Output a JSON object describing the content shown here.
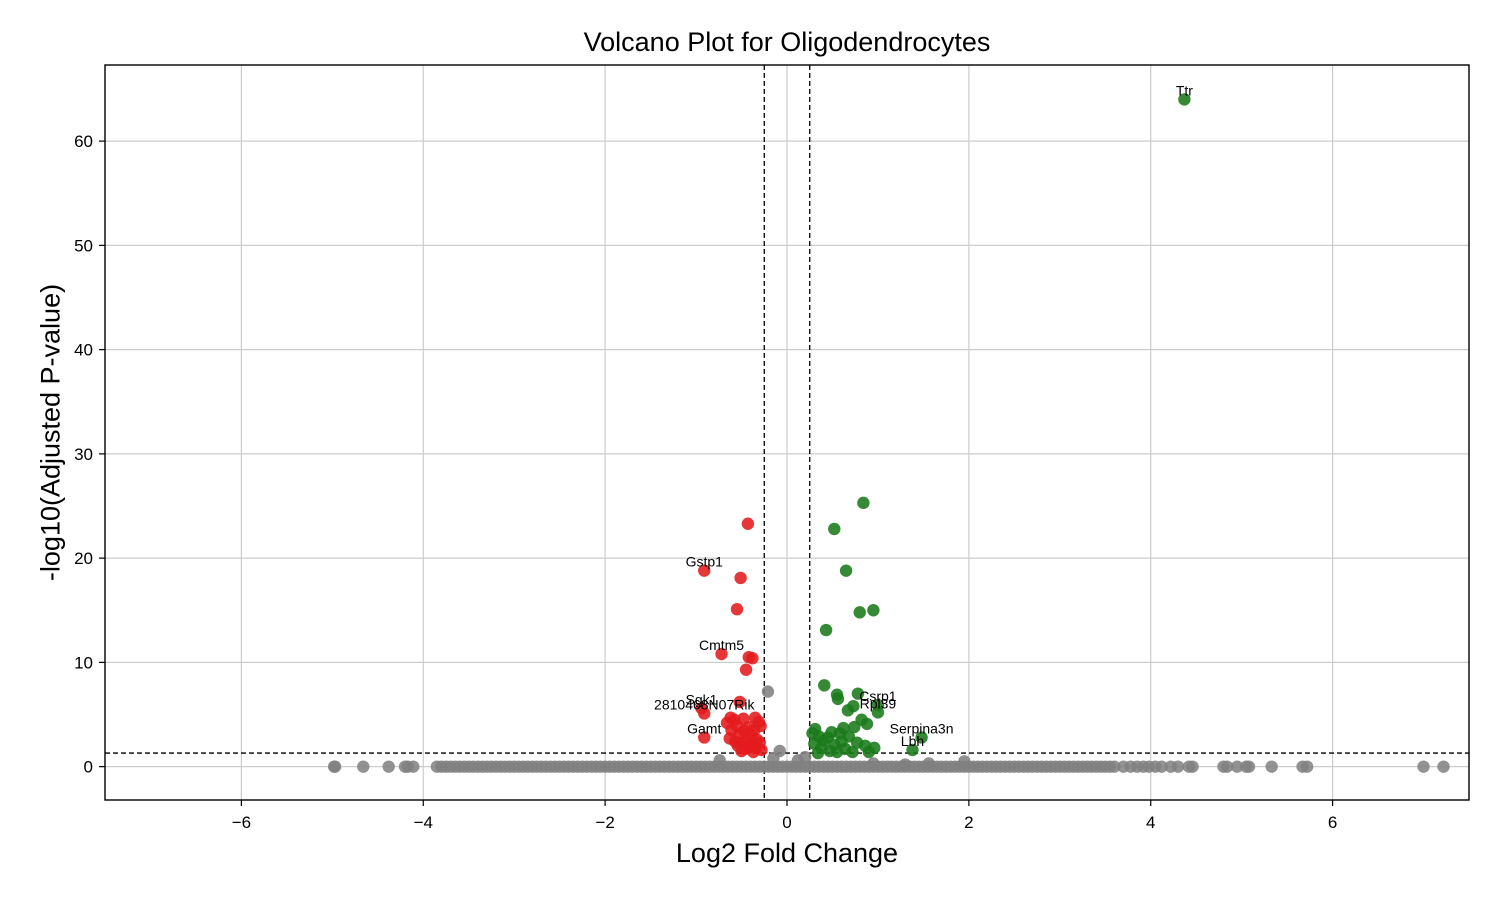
{
  "chart_data": {
    "type": "scatter",
    "title": "Volcano Plot for Oligodendrocytes",
    "xlabel": "Log2 Fold Change",
    "ylabel": "-log10(Adjusted P-value)",
    "xlim": [
      -7.5,
      7.5
    ],
    "ylim": [
      -3.2,
      67.3
    ],
    "xticks": [
      -6,
      -4,
      -2,
      0,
      2,
      4,
      6
    ],
    "yticks": [
      0,
      10,
      20,
      30,
      40,
      50,
      60
    ],
    "grid": true,
    "thresholds": {
      "log2fc": [
        -0.25,
        0.25
      ],
      "neg_log10_p": 1.3
    },
    "colors": {
      "down": "#e41a1c",
      "up": "#1a7a1a",
      "ns": "#808080",
      "grid": "#cccccc",
      "threshold": "#000000"
    },
    "series": [
      {
        "category": "down",
        "points": [
          {
            "x": -0.43,
            "y": 23.3
          },
          {
            "x": -0.91,
            "y": 18.8
          },
          {
            "x": -0.51,
            "y": 18.1
          },
          {
            "x": -0.55,
            "y": 15.1
          },
          {
            "x": -0.72,
            "y": 10.8
          },
          {
            "x": -0.42,
            "y": 10.5
          },
          {
            "x": -0.38,
            "y": 10.4
          },
          {
            "x": -0.45,
            "y": 9.3
          },
          {
            "x": -0.52,
            "y": 6.2
          },
          {
            "x": -0.94,
            "y": 5.6
          },
          {
            "x": -0.91,
            "y": 5.1
          },
          {
            "x": -0.62,
            "y": 4.7
          },
          {
            "x": -0.58,
            "y": 4.5
          },
          {
            "x": -0.48,
            "y": 4.6
          },
          {
            "x": -0.35,
            "y": 4.7
          },
          {
            "x": -0.66,
            "y": 4.2
          },
          {
            "x": -0.31,
            "y": 4.3
          },
          {
            "x": -0.55,
            "y": 3.9
          },
          {
            "x": -0.42,
            "y": 3.8
          },
          {
            "x": -0.29,
            "y": 3.9
          },
          {
            "x": -0.61,
            "y": 3.5
          },
          {
            "x": -0.47,
            "y": 3.4
          },
          {
            "x": -0.36,
            "y": 3.5
          },
          {
            "x": -0.52,
            "y": 3.1
          },
          {
            "x": -0.39,
            "y": 3.0
          },
          {
            "x": -0.91,
            "y": 2.8
          },
          {
            "x": -0.63,
            "y": 2.7
          },
          {
            "x": -0.44,
            "y": 2.6
          },
          {
            "x": -0.33,
            "y": 2.6
          },
          {
            "x": -0.57,
            "y": 2.4
          },
          {
            "x": -0.49,
            "y": 2.3
          },
          {
            "x": -0.38,
            "y": 2.2
          },
          {
            "x": -0.3,
            "y": 2.3
          },
          {
            "x": -0.54,
            "y": 2.0
          },
          {
            "x": -0.41,
            "y": 1.9
          },
          {
            "x": -0.46,
            "y": 1.7
          },
          {
            "x": -0.34,
            "y": 1.8
          },
          {
            "x": -0.28,
            "y": 1.6
          },
          {
            "x": -0.5,
            "y": 1.5
          },
          {
            "x": -0.37,
            "y": 1.4
          }
        ]
      },
      {
        "category": "up",
        "points": [
          {
            "x": 4.37,
            "y": 64.0
          },
          {
            "x": 0.84,
            "y": 25.3
          },
          {
            "x": 0.52,
            "y": 22.8
          },
          {
            "x": 0.65,
            "y": 18.8
          },
          {
            "x": 0.95,
            "y": 15.0
          },
          {
            "x": 0.8,
            "y": 14.8
          },
          {
            "x": 0.43,
            "y": 13.1
          },
          {
            "x": 0.41,
            "y": 7.8
          },
          {
            "x": 0.55,
            "y": 6.9
          },
          {
            "x": 0.78,
            "y": 7.0
          },
          {
            "x": 0.56,
            "y": 6.5
          },
          {
            "x": 1.0,
            "y": 5.9
          },
          {
            "x": 0.73,
            "y": 5.8
          },
          {
            "x": 0.67,
            "y": 5.4
          },
          {
            "x": 1.0,
            "y": 5.2
          },
          {
            "x": 0.82,
            "y": 4.5
          },
          {
            "x": 0.88,
            "y": 4.1
          },
          {
            "x": 0.62,
            "y": 3.7
          },
          {
            "x": 0.31,
            "y": 3.6
          },
          {
            "x": 0.74,
            "y": 3.8
          },
          {
            "x": 0.28,
            "y": 3.2
          },
          {
            "x": 0.49,
            "y": 3.3
          },
          {
            "x": 0.58,
            "y": 3.2
          },
          {
            "x": 0.35,
            "y": 2.9
          },
          {
            "x": 0.45,
            "y": 2.8
          },
          {
            "x": 0.68,
            "y": 2.9
          },
          {
            "x": 1.48,
            "y": 2.8
          },
          {
            "x": 0.4,
            "y": 2.5
          },
          {
            "x": 0.6,
            "y": 2.4
          },
          {
            "x": 0.77,
            "y": 2.3
          },
          {
            "x": 0.3,
            "y": 2.2
          },
          {
            "x": 0.52,
            "y": 2.1
          },
          {
            "x": 0.86,
            "y": 2.0
          },
          {
            "x": 0.38,
            "y": 1.8
          },
          {
            "x": 0.64,
            "y": 1.7
          },
          {
            "x": 0.96,
            "y": 1.8
          },
          {
            "x": 1.38,
            "y": 1.6
          },
          {
            "x": 0.47,
            "y": 1.5
          },
          {
            "x": 0.72,
            "y": 1.4
          },
          {
            "x": 0.9,
            "y": 1.4
          },
          {
            "x": 0.34,
            "y": 1.3
          },
          {
            "x": 0.55,
            "y": 1.4
          }
        ]
      },
      {
        "category": "ns",
        "points": [
          {
            "x": -0.21,
            "y": 7.2
          },
          {
            "x": -0.08,
            "y": 1.5
          },
          {
            "x": 0.12,
            "y": 0.6
          },
          {
            "x": 0.2,
            "y": 0.9
          },
          {
            "x": -0.15,
            "y": 0.8
          },
          {
            "x": 1.95,
            "y": 0.5
          },
          {
            "x": 1.56,
            "y": 0.3
          },
          {
            "x": -0.74,
            "y": 0.6
          },
          {
            "x": 1.3,
            "y": 0.2
          },
          {
            "x": 0.95,
            "y": 0.3
          }
        ]
      }
    ],
    "ns_baseline_x": [
      -4.98,
      -4.97,
      -4.66,
      -4.38,
      -4.2,
      -4.17,
      -4.11,
      -3.85,
      -3.8,
      -3.75,
      -3.7,
      -3.65,
      -3.6,
      -3.55,
      -3.5,
      -3.45,
      -3.4,
      -3.35,
      -3.3,
      -3.25,
      -3.2,
      -3.15,
      -3.1,
      -3.05,
      -3.0,
      -2.95,
      -2.9,
      -2.85,
      -2.8,
      -2.75,
      -2.7,
      -2.65,
      -2.6,
      -2.55,
      -2.5,
      -2.45,
      -2.4,
      -2.35,
      -2.3,
      -2.25,
      -2.2,
      -2.15,
      -2.1,
      -2.05,
      -2.0,
      -1.95,
      -1.9,
      -1.85,
      -1.8,
      -1.75,
      -1.7,
      -1.65,
      -1.6,
      -1.55,
      -1.5,
      -1.45,
      -1.4,
      -1.35,
      -1.3,
      -1.25,
      -1.2,
      -1.15,
      -1.1,
      -1.05,
      -1.0,
      -0.95,
      -0.9,
      -0.85,
      -0.8,
      -0.75,
      -0.7,
      -0.65,
      -0.6,
      -0.55,
      -0.5,
      -0.45,
      -0.4,
      -0.35,
      -0.3,
      -0.25,
      -0.2,
      -0.15,
      -0.1,
      -0.05,
      0.0,
      0.05,
      0.1,
      0.15,
      0.2,
      0.25,
      0.3,
      0.35,
      0.4,
      0.45,
      0.5,
      0.55,
      0.6,
      0.65,
      0.7,
      0.75,
      0.8,
      0.85,
      0.9,
      0.95,
      1.0,
      1.05,
      1.1,
      1.15,
      1.2,
      1.25,
      1.3,
      1.35,
      1.4,
      1.45,
      1.5,
      1.55,
      1.6,
      1.65,
      1.7,
      1.75,
      1.8,
      1.85,
      1.9,
      1.95,
      2.0,
      2.05,
      2.1,
      2.15,
      2.2,
      2.25,
      2.3,
      2.35,
      2.4,
      2.45,
      2.5,
      2.55,
      2.6,
      2.65,
      2.7,
      2.75,
      2.8,
      2.85,
      2.9,
      2.95,
      3.0,
      3.05,
      3.1,
      3.15,
      3.2,
      3.25,
      3.3,
      3.35,
      3.4,
      3.45,
      3.5,
      3.55,
      3.6,
      3.7,
      3.78,
      3.85,
      3.92,
      3.98,
      4.05,
      4.12,
      4.22,
      4.3,
      4.42,
      4.46,
      4.8,
      4.84,
      4.95,
      5.05,
      5.08,
      5.33,
      5.67,
      5.72,
      7.0,
      7.22
    ],
    "annotations": [
      {
        "label": "Ttr",
        "x": 4.37,
        "y": 64.0
      },
      {
        "label": "Gstp1",
        "x": -0.91,
        "y": 18.8
      },
      {
        "label": "Cmtm5",
        "x": -0.72,
        "y": 10.8
      },
      {
        "label": "Sgk1",
        "x": -0.94,
        "y": 5.6
      },
      {
        "label": "2810468N07Rik",
        "x": -0.91,
        "y": 5.1
      },
      {
        "label": "Csrp1",
        "x": 1.0,
        "y": 5.9
      },
      {
        "label": "Rpl39",
        "x": 1.0,
        "y": 5.2
      },
      {
        "label": "Serpina3n",
        "x": 1.48,
        "y": 2.8
      },
      {
        "label": "Gamt",
        "x": -0.91,
        "y": 2.8
      },
      {
        "label": "Lbh",
        "x": 1.38,
        "y": 1.6
      }
    ]
  }
}
